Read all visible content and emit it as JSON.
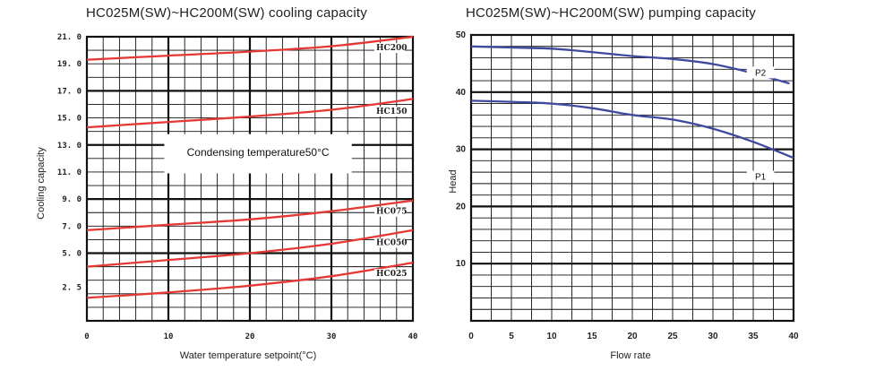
{
  "chart_data": [
    {
      "type": "line",
      "title": "HC025M(SW)~HC200M(SW) cooling capacity",
      "xlabel": "Water temperature setpoint(°C)",
      "ylabel": "Cooling capacity",
      "xlim": [
        0,
        40
      ],
      "ylim": [
        0,
        21
      ],
      "grid": true,
      "x_ticks": [
        "0",
        "10",
        "20",
        "30",
        "40"
      ],
      "y_ticks": [
        {
          "value": 2.5,
          "label": "2. 5"
        },
        {
          "value": 5.0,
          "label": "5. 0"
        },
        {
          "value": 7.0,
          "label": "7. 0"
        },
        {
          "value": 9.0,
          "label": "9. 0"
        },
        {
          "value": 11.0,
          "label": "11. 0"
        },
        {
          "value": 13.0,
          "label": "13. 0"
        },
        {
          "value": 15.0,
          "label": "15. 0"
        },
        {
          "value": 17.0,
          "label": "17. 0"
        },
        {
          "value": 19.0,
          "label": "19. 0"
        },
        {
          "value": 21.0,
          "label": "21. 0"
        }
      ],
      "annotation": "Condensing temperature50°C",
      "line_color": "#e53935",
      "series": [
        {
          "name": "HC200",
          "x": [
            0,
            10,
            20,
            30,
            40
          ],
          "y": [
            19.3,
            19.6,
            19.9,
            20.3,
            21.0
          ]
        },
        {
          "name": "HC150",
          "x": [
            0,
            10,
            20,
            30,
            40
          ],
          "y": [
            14.3,
            14.7,
            15.1,
            15.6,
            16.4
          ]
        },
        {
          "name": "HC075",
          "x": [
            0,
            10,
            20,
            30,
            40
          ],
          "y": [
            6.7,
            7.1,
            7.5,
            8.1,
            8.9
          ]
        },
        {
          "name": "HC050",
          "x": [
            0,
            10,
            20,
            30,
            40
          ],
          "y": [
            4.0,
            4.5,
            5.0,
            5.7,
            6.7
          ]
        },
        {
          "name": "HC025",
          "x": [
            0,
            10,
            20,
            30,
            40
          ],
          "y": [
            1.7,
            2.1,
            2.6,
            3.3,
            4.3
          ]
        }
      ]
    },
    {
      "type": "line",
      "title": "HC025M(SW)~HC200M(SW) pumping capacity",
      "xlabel": "Flow rate",
      "ylabel": "Head",
      "xlim": [
        0,
        40
      ],
      "ylim": [
        0,
        50
      ],
      "grid": true,
      "x_ticks": [
        "0",
        "5",
        "10",
        "15",
        "20",
        "25",
        "30",
        "35",
        "40"
      ],
      "y_ticks": [
        {
          "value": 10,
          "label": "10"
        },
        {
          "value": 20,
          "label": "20"
        },
        {
          "value": 30,
          "label": "30"
        },
        {
          "value": 40,
          "label": "40"
        },
        {
          "value": 50,
          "label": "50"
        }
      ],
      "line_color": "#3f4a9e",
      "series": [
        {
          "name": "P2",
          "x": [
            0,
            5,
            10,
            15,
            20,
            25,
            30,
            35,
            39.5
          ],
          "y": [
            48.0,
            47.8,
            47.6,
            47.0,
            46.3,
            45.8,
            44.9,
            43.3,
            41.5
          ]
        },
        {
          "name": "P1",
          "x": [
            0,
            5,
            10,
            15,
            20,
            25,
            30,
            35,
            40
          ],
          "y": [
            38.5,
            38.3,
            38.0,
            37.2,
            36.0,
            35.2,
            33.6,
            31.3,
            28.5
          ]
        }
      ]
    }
  ]
}
